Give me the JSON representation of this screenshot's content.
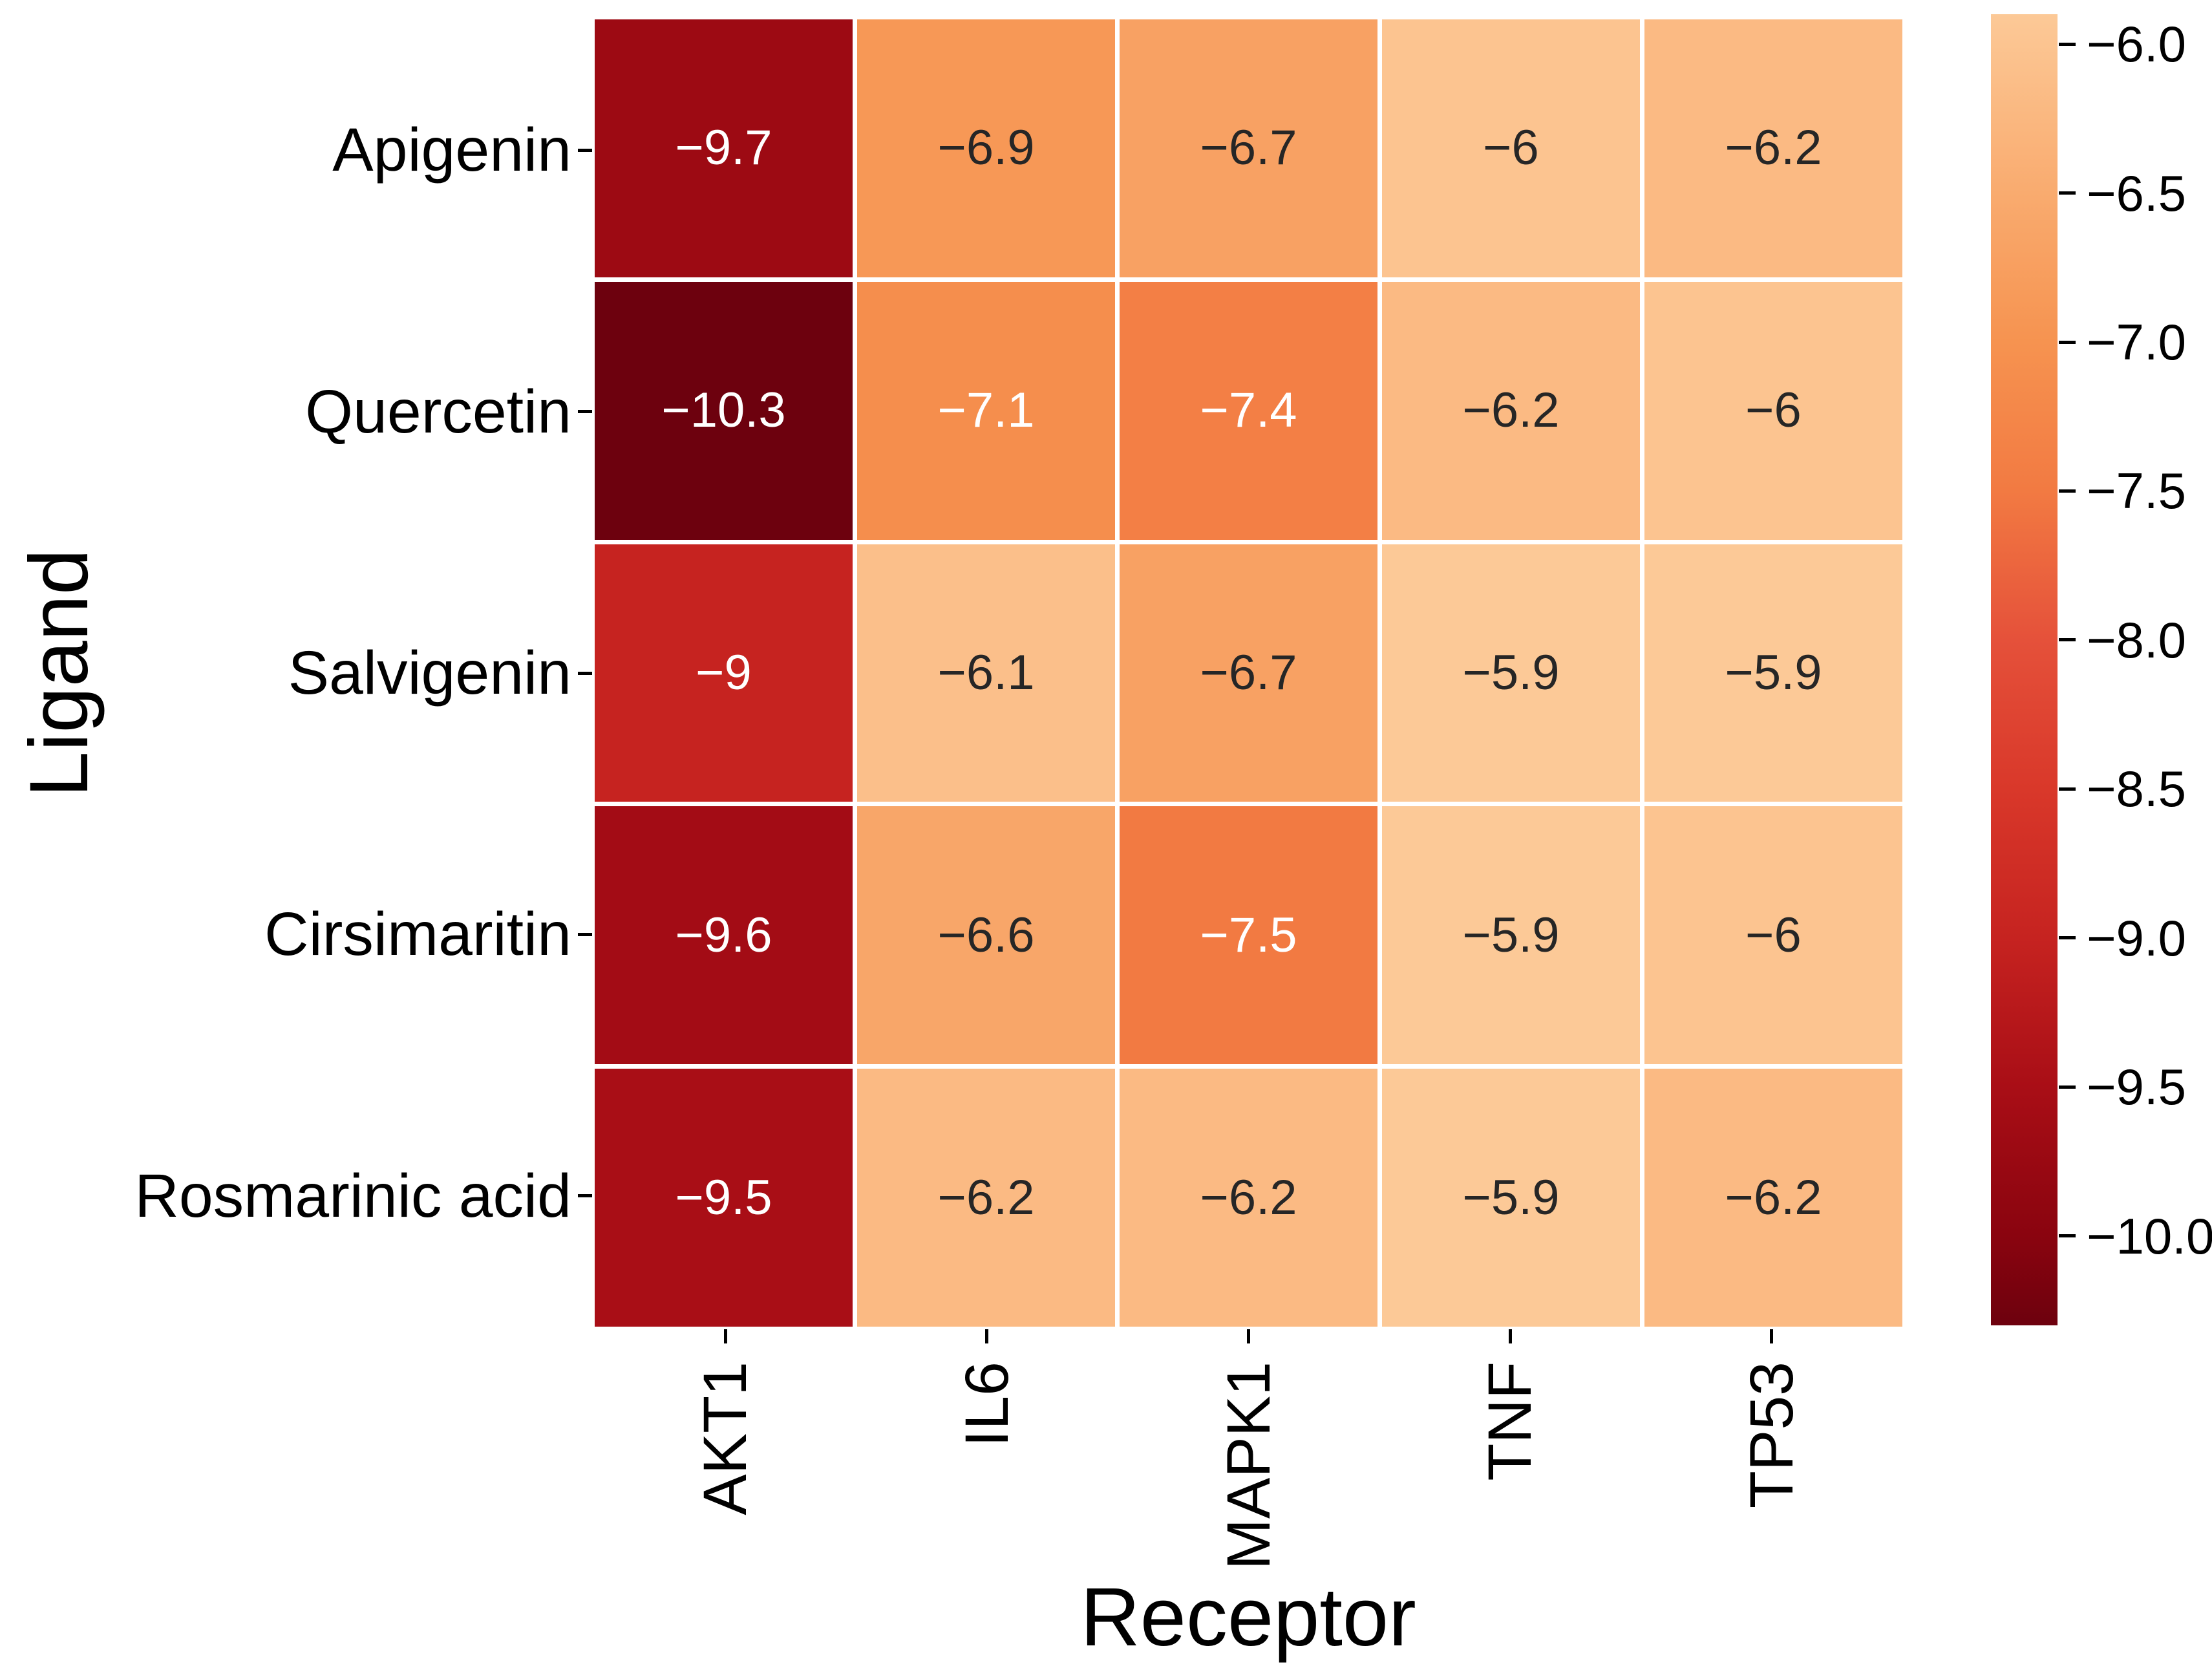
{
  "chart_data": {
    "type": "heatmap",
    "title": "",
    "xlabel": "Receptor",
    "ylabel": "Ligand",
    "rows": [
      "Apigenin",
      "Quercetin",
      "Salvigenin",
      "Cirsimaritin",
      "Rosmarinic acid"
    ],
    "columns": [
      "AKT1",
      "IL6",
      "MAPK1",
      "TNF",
      "TP53"
    ],
    "values": [
      [
        -9.7,
        -6.9,
        -6.7,
        -6.0,
        -6.2
      ],
      [
        -10.3,
        -7.1,
        -7.4,
        -6.2,
        -6.0
      ],
      [
        -9.0,
        -6.1,
        -6.7,
        -5.9,
        -5.9
      ],
      [
        -9.6,
        -6.6,
        -7.5,
        -5.9,
        -6.0
      ],
      [
        -9.5,
        -6.2,
        -6.2,
        -5.9,
        -6.2
      ]
    ],
    "cell_labels": [
      [
        "-9.7",
        "-6.9",
        "-6.7",
        "-6",
        "-6.2"
      ],
      [
        "-10.3",
        "-7.1",
        "-7.4",
        "-6.2",
        "-6"
      ],
      [
        "-9",
        "-6.1",
        "-6.7",
        "-5.9",
        "-5.9"
      ],
      [
        "-9.6",
        "-6.6",
        "-7.5",
        "-5.9",
        "-6"
      ],
      [
        "-9.5",
        "-6.2",
        "-6.2",
        "-5.9",
        "-6.2"
      ]
    ],
    "grid_on": true,
    "grid_color": "#ffffff",
    "legend_position": "right-colorbar",
    "colorbar": {
      "vmax": -5.9,
      "vmin": -10.3,
      "ticks": [
        -6.0,
        -6.5,
        -7.0,
        -7.5,
        -8.0,
        -8.5,
        -9.0,
        -9.5,
        -10.0
      ],
      "tick_labels": [
        "-6.0",
        "-6.5",
        "-7.0",
        "-7.5",
        "-8.0",
        "-8.5",
        "-9.0",
        "-9.5",
        "-10.0"
      ]
    },
    "colormap_stops": [
      {
        "v": -5.9,
        "c": "#FCC997"
      },
      {
        "v": -6.5,
        "c": "#F9AB6F"
      },
      {
        "v": -7.0,
        "c": "#F69350"
      },
      {
        "v": -7.5,
        "c": "#F27A42"
      },
      {
        "v": -8.0,
        "c": "#E5513A"
      },
      {
        "v": -8.5,
        "c": "#D9382A"
      },
      {
        "v": -9.0,
        "c": "#C62320"
      },
      {
        "v": -9.5,
        "c": "#A90E16"
      },
      {
        "v": -10.0,
        "c": "#8A040F"
      },
      {
        "v": -10.3,
        "c": "#6D010E"
      }
    ],
    "annotation_colors": {
      "dark": "#262626",
      "light": "#ffffff"
    },
    "tick_color": "#000000",
    "background": "#ffffff"
  }
}
